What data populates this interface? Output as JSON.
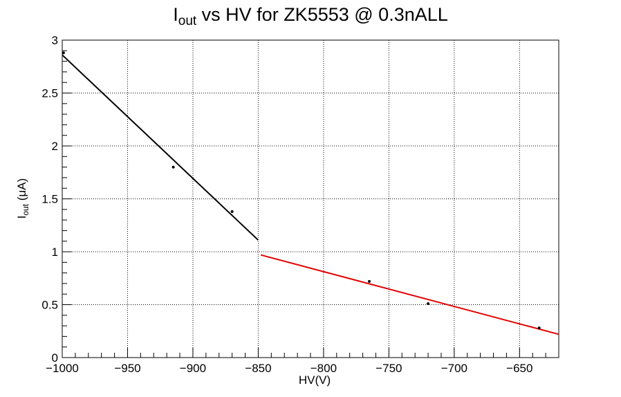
{
  "chart_data": {
    "type": "scatter",
    "title_main": "I",
    "title_sub": "out",
    "title_rest": " vs HV for ZK5553 @ 0.3nALL",
    "xlabel": "HV(V)",
    "ylabel_main": "I",
    "ylabel_sub": "out",
    "ylabel_rest": " (μA)",
    "xlim": [
      -1000,
      -620
    ],
    "ylim": [
      0,
      3
    ],
    "grid": true,
    "x_ticks": [
      -1000,
      -950,
      -900,
      -850,
      -800,
      -750,
      -700,
      -650
    ],
    "x_tick_labels": [
      "−1000",
      "−950",
      "−900",
      "−850",
      "−800",
      "−750",
      "−700",
      "−650"
    ],
    "y_ticks": [
      0,
      0.5,
      1,
      1.5,
      2,
      2.5,
      3
    ],
    "y_tick_labels": [
      "0",
      "0.5",
      "1",
      "1.5",
      "2",
      "2.5",
      "3"
    ],
    "points": [
      {
        "x": -999,
        "y": 2.88
      },
      {
        "x": -915,
        "y": 1.8
      },
      {
        "x": -870,
        "y": 1.38
      },
      {
        "x": -765,
        "y": 0.72
      },
      {
        "x": -720,
        "y": 0.51
      },
      {
        "x": -635,
        "y": 0.28
      }
    ],
    "fits": [
      {
        "x": [
          -1000,
          -850
        ],
        "y": [
          2.86,
          1.11
        ],
        "color": "#000000"
      },
      {
        "x": [
          -848,
          -620
        ],
        "y": [
          0.97,
          0.22
        ],
        "color": "#e00000"
      }
    ]
  }
}
